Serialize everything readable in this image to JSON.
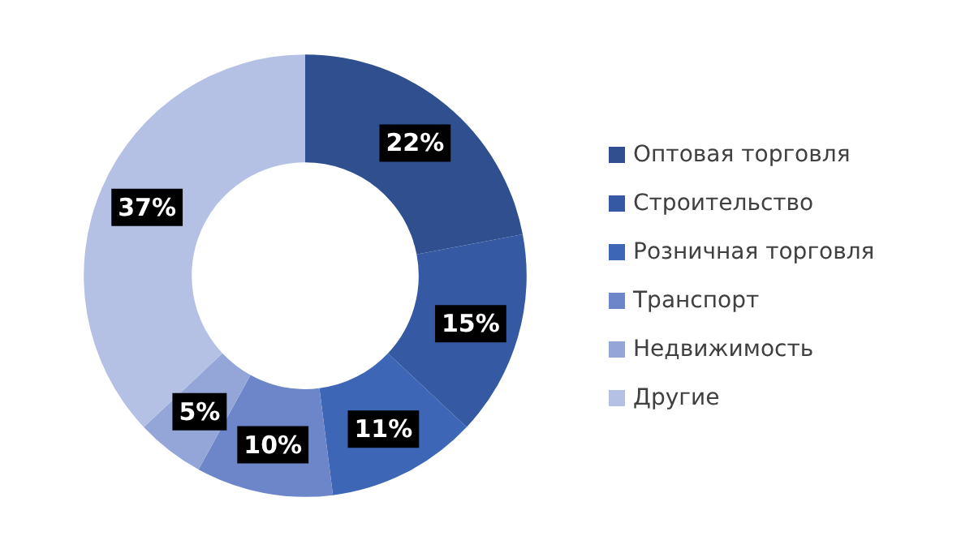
{
  "chart_data": {
    "type": "donut",
    "categories": [
      "Оптовая торговля",
      "Строительство",
      "Розничная торговля",
      "Транспорт",
      "Недвижимость",
      "Другие"
    ],
    "values": [
      22,
      15,
      11,
      10,
      5,
      37
    ],
    "value_labels": [
      "22%",
      "15%",
      "11%",
      "10%",
      "5%",
      "37%"
    ],
    "colors": [
      "#2f4f8f",
      "#3659a3",
      "#3e66b6",
      "#6c86c9",
      "#94a6d8",
      "#b4c1e4"
    ],
    "legend": "right"
  }
}
